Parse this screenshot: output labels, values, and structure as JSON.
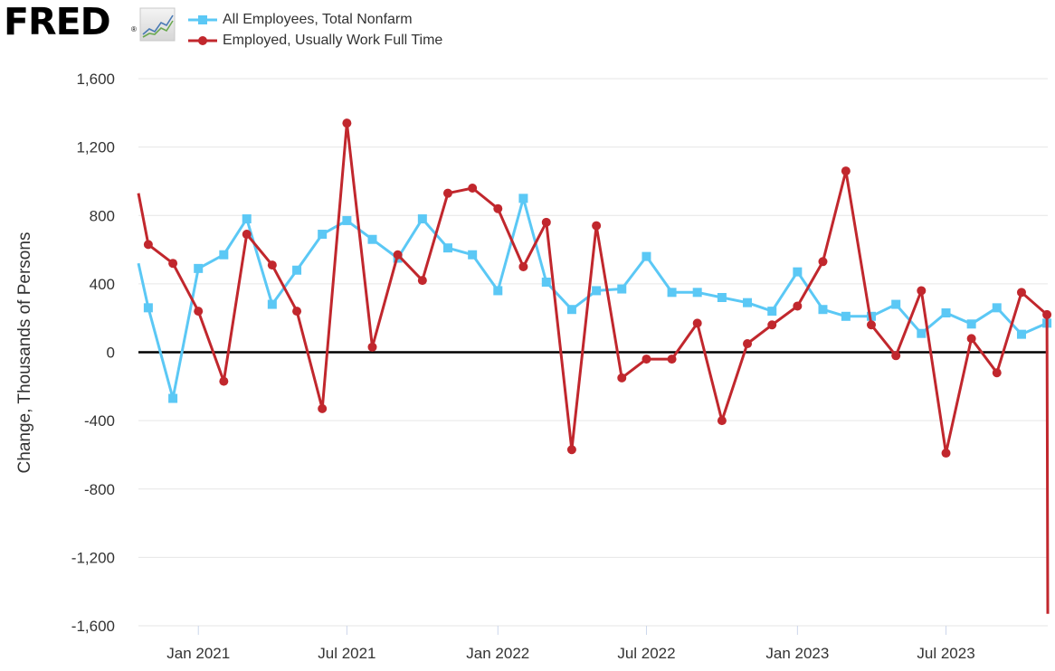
{
  "logo": {
    "text": "FRED",
    "registered_mark": "®",
    "icon": "line-chart-icon"
  },
  "legend": [
    {
      "label": "All Employees, Total Nonfarm",
      "color": "#5bc8f5",
      "marker": "square"
    },
    {
      "label": "Employed, Usually Work Full Time",
      "color": "#c1272d",
      "marker": "circle"
    }
  ],
  "chart_data": {
    "type": "line",
    "title": "",
    "xlabel": "",
    "ylabel": "Change, Thousands of Persons",
    "ylim": [
      -1600,
      1600
    ],
    "yticks": [
      1600,
      1200,
      800,
      400,
      0,
      -400,
      -800,
      -1200,
      -1600
    ],
    "ytick_labels": [
      "1,600",
      "1,200",
      "800",
      "400",
      "0",
      "-400",
      "-800",
      "-1,200",
      "-1,600"
    ],
    "xlim": [
      "2020-10-20",
      "2023-11-02"
    ],
    "xticks": [
      "2021-01-01",
      "2021-07-01",
      "2022-01-01",
      "2022-07-01",
      "2023-01-01",
      "2023-07-01"
    ],
    "xtick_labels": [
      "Jan 2021",
      "Jul 2021",
      "Jan 2022",
      "Jul 2022",
      "Jan 2023",
      "Jul 2023"
    ],
    "grid": true,
    "zero_line": true,
    "x": [
      "2020-11-01",
      "2020-12-01",
      "2021-01-01",
      "2021-02-01",
      "2021-03-01",
      "2021-04-01",
      "2021-05-01",
      "2021-06-01",
      "2021-07-01",
      "2021-08-01",
      "2021-09-01",
      "2021-10-01",
      "2021-11-01",
      "2021-12-01",
      "2022-01-01",
      "2022-02-01",
      "2022-03-01",
      "2022-04-01",
      "2022-05-01",
      "2022-06-01",
      "2022-07-01",
      "2022-08-01",
      "2022-09-01",
      "2022-10-01",
      "2022-11-01",
      "2022-12-01",
      "2023-01-01",
      "2023-02-01",
      "2023-03-01",
      "2023-04-01",
      "2023-05-01",
      "2023-06-01",
      "2023-07-01",
      "2023-08-01",
      "2023-09-01",
      "2023-10-01",
      "2023-11-01"
    ],
    "series": [
      {
        "name": "All Employees, Total Nonfarm",
        "color": "#5bc8f5",
        "marker": "square",
        "partial_start": {
          "x": "2020-10-20",
          "y": 520
        },
        "values": [
          260,
          -270,
          490,
          570,
          780,
          280,
          480,
          690,
          770,
          660,
          550,
          780,
          610,
          570,
          360,
          900,
          410,
          250,
          360,
          370,
          560,
          350,
          350,
          320,
          290,
          240,
          470,
          250,
          210,
          210,
          280,
          110,
          230,
          165,
          260,
          105,
          170
        ]
      },
      {
        "name": "Employed, Usually Work Full Time",
        "color": "#c1272d",
        "marker": "circle",
        "partial_start": {
          "x": "2020-10-20",
          "y": 930
        },
        "values": [
          630,
          520,
          240,
          -170,
          690,
          510,
          240,
          -330,
          1340,
          30,
          570,
          420,
          930,
          960,
          840,
          500,
          760,
          -570,
          740,
          -150,
          -40,
          -40,
          170,
          -400,
          50,
          160,
          270,
          530,
          1060,
          160,
          -20,
          360,
          -590,
          80,
          -120,
          350,
          220
        ]
      }
    ],
    "partial_end": {
      "x": "2023-11-02",
      "values": [
        210,
        -1530
      ]
    }
  }
}
